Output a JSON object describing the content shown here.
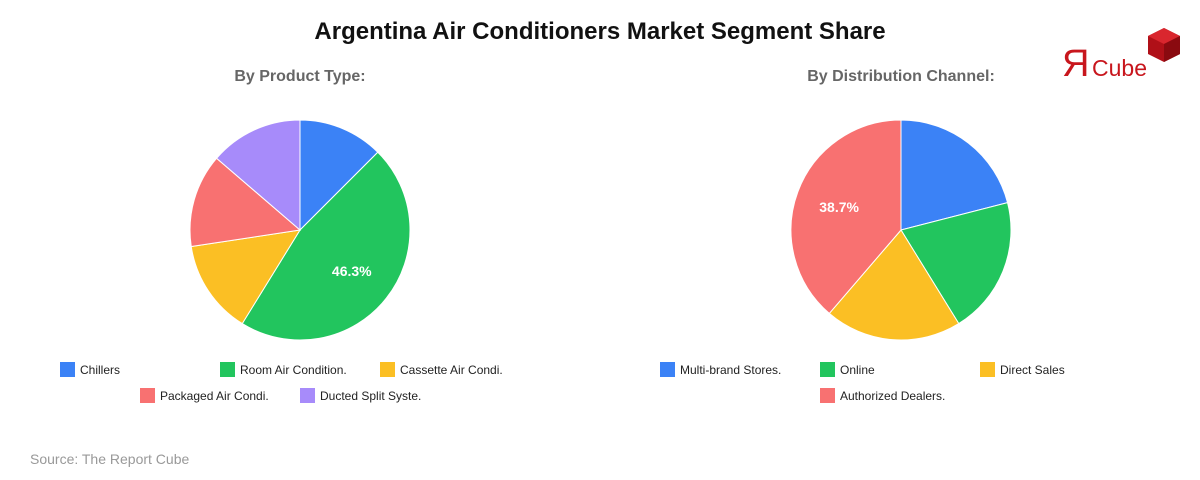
{
  "title": "Argentina Air Conditioners Market Segment Share",
  "source": "Source: The Report Cube",
  "logo": {
    "mark": "Я",
    "text": "Cube",
    "color": "#c8161d"
  },
  "charts": [
    {
      "subtitle": "By Product Type:",
      "legend": [
        {
          "label": "Chillers",
          "color": "#3b82f6"
        },
        {
          "label": "Room Air Condition.",
          "color": "#22c55e"
        },
        {
          "label": "Cassette Air Condi.",
          "color": "#fbbf24"
        },
        {
          "label": "Packaged Air Condi.",
          "color": "#f87171"
        },
        {
          "label": "Ducted Split Syste.",
          "color": "#a78bfa"
        }
      ]
    },
    {
      "subtitle": "By Distribution Channel:",
      "legend": [
        {
          "label": "Multi-brand Stores.",
          "color": "#3b82f6"
        },
        {
          "label": "Online",
          "color": "#22c55e"
        },
        {
          "label": "Direct Sales",
          "color": "#fbbf24"
        },
        {
          "label": "Authorized Dealers.",
          "color": "#f87171"
        }
      ]
    }
  ],
  "chart_data": [
    {
      "type": "pie",
      "title": "By Product Type:",
      "categories": [
        "Chillers",
        "Room Air Condition.",
        "Cassette Air Condi.",
        "Packaged Air Condi.",
        "Ducted Split Syste."
      ],
      "values": [
        12.5,
        46.3,
        13.8,
        13.7,
        13.7
      ],
      "colors": [
        "#3b82f6",
        "#22c55e",
        "#fbbf24",
        "#f87171",
        "#a78bfa"
      ],
      "labels_shown": [
        "",
        "46.3%",
        "",
        "",
        ""
      ],
      "legend_position": "bottom"
    },
    {
      "type": "pie",
      "title": "By Distribution Channel:",
      "categories": [
        "Multi-brand Stores.",
        "Online",
        "Direct Sales",
        "Authorized Dealers."
      ],
      "values": [
        21.0,
        20.2,
        20.1,
        38.7
      ],
      "colors": [
        "#3b82f6",
        "#22c55e",
        "#fbbf24",
        "#f87171"
      ],
      "labels_shown": [
        "",
        "",
        "",
        "38.7%"
      ],
      "legend_position": "bottom"
    }
  ]
}
